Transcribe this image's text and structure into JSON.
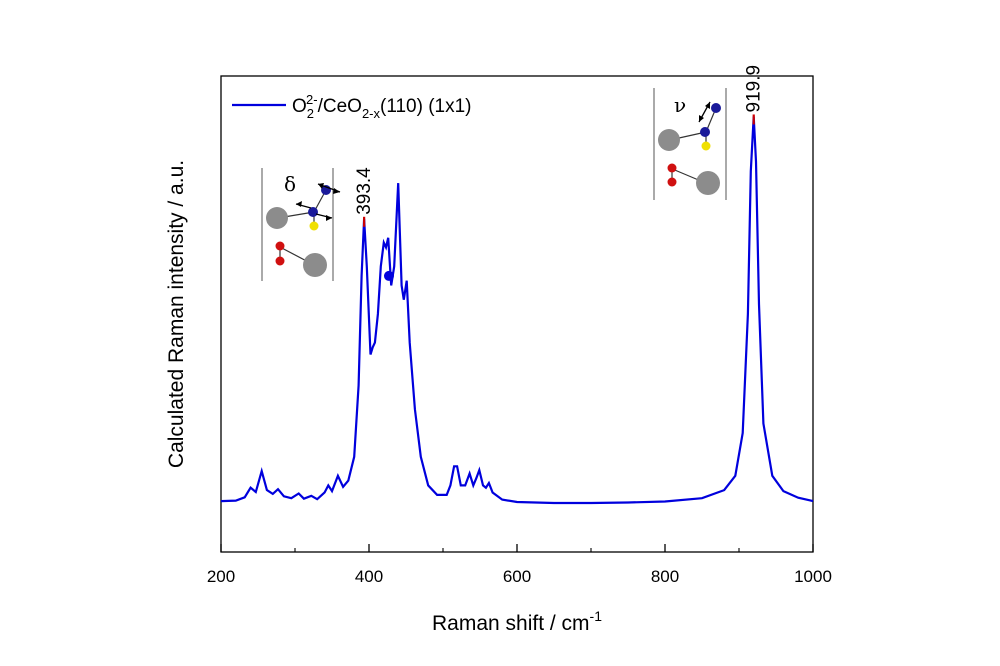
{
  "chart_data": {
    "type": "line",
    "title": "",
    "xlabel": "Raman shift / cm",
    "xlabel_sup": "-1",
    "ylabel": "Calculated Raman intensity / a.u.",
    "xlim": [
      200,
      1000
    ],
    "ylim": [
      0,
      1
    ],
    "x_ticks": [
      200,
      400,
      600,
      800,
      1000
    ],
    "y_ticks": [],
    "grid": false,
    "legend_position": "top-left",
    "series": [
      {
        "name_parts": {
          "a": "O",
          "b": "2",
          "c": "2-",
          "d": "/CeO",
          "e": "2-x",
          "f": "(110) (1x1)"
        },
        "color": "#0000dd",
        "points": [
          [
            200,
            0.107
          ],
          [
            220,
            0.108
          ],
          [
            232,
            0.115
          ],
          [
            240,
            0.135
          ],
          [
            247,
            0.126
          ],
          [
            255,
            0.17
          ],
          [
            262,
            0.13
          ],
          [
            270,
            0.122
          ],
          [
            277,
            0.132
          ],
          [
            285,
            0.117
          ],
          [
            295,
            0.113
          ],
          [
            305,
            0.123
          ],
          [
            312,
            0.112
          ],
          [
            322,
            0.118
          ],
          [
            330,
            0.111
          ],
          [
            340,
            0.125
          ],
          [
            345,
            0.14
          ],
          [
            350,
            0.128
          ],
          [
            358,
            0.16
          ],
          [
            365,
            0.137
          ],
          [
            372,
            0.15
          ],
          [
            380,
            0.2
          ],
          [
            386,
            0.35
          ],
          [
            390,
            0.58
          ],
          [
            393.4,
            0.7
          ],
          [
            397,
            0.6
          ],
          [
            402,
            0.415
          ],
          [
            405,
            0.43
          ],
          [
            408,
            0.44
          ],
          [
            412,
            0.5
          ],
          [
            416,
            0.6
          ],
          [
            420,
            0.65
          ],
          [
            423,
            0.64
          ],
          [
            426,
            0.66
          ],
          [
            430,
            0.56
          ],
          [
            434,
            0.6
          ],
          [
            439.5,
            0.775
          ],
          [
            444,
            0.56
          ],
          [
            447,
            0.53
          ],
          [
            451,
            0.57
          ],
          [
            455,
            0.44
          ],
          [
            462,
            0.3
          ],
          [
            470,
            0.2
          ],
          [
            480,
            0.14
          ],
          [
            492,
            0.12
          ],
          [
            505,
            0.12
          ],
          [
            510,
            0.14
          ],
          [
            515,
            0.18
          ],
          [
            519,
            0.18
          ],
          [
            524,
            0.14
          ],
          [
            530,
            0.14
          ],
          [
            536,
            0.165
          ],
          [
            541,
            0.14
          ],
          [
            545,
            0.155
          ],
          [
            549,
            0.172
          ],
          [
            554,
            0.14
          ],
          [
            558,
            0.135
          ],
          [
            562,
            0.145
          ],
          [
            567,
            0.125
          ],
          [
            580,
            0.11
          ],
          [
            600,
            0.105
          ],
          [
            650,
            0.103
          ],
          [
            700,
            0.103
          ],
          [
            750,
            0.104
          ],
          [
            800,
            0.106
          ],
          [
            850,
            0.113
          ],
          [
            880,
            0.13
          ],
          [
            895,
            0.16
          ],
          [
            905,
            0.25
          ],
          [
            912,
            0.5
          ],
          [
            916,
            0.8
          ],
          [
            919.9,
            0.915
          ],
          [
            923,
            0.82
          ],
          [
            927,
            0.52
          ],
          [
            933,
            0.27
          ],
          [
            945,
            0.16
          ],
          [
            960,
            0.128
          ],
          [
            980,
            0.114
          ],
          [
            1000,
            0.107
          ]
        ]
      }
    ],
    "annotations": [
      {
        "label": "393.4",
        "x": 393.4,
        "y": 0.7
      },
      {
        "label": "919.9",
        "x": 919.9,
        "y": 0.915
      }
    ],
    "marker": {
      "x": 427,
      "y": 0.58
    },
    "insets": [
      {
        "mode_symbol": "δ",
        "near_peak": "393.4"
      },
      {
        "mode_symbol": "ν",
        "near_peak": "919.9"
      }
    ],
    "colors": {
      "line": "#0000dd",
      "peak_marker": "#cc0000",
      "axis": "#000000"
    }
  }
}
